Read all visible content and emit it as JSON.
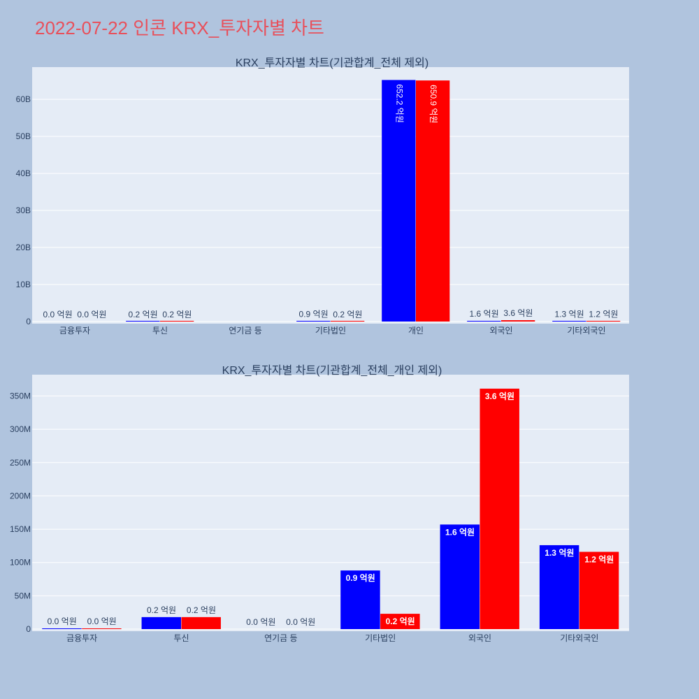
{
  "page": {
    "title": "2022-07-22 인콘 KRX_투자자별 차트"
  },
  "chart_data": [
    {
      "type": "bar",
      "title": "KRX_투자자별 차트(기관합계_전체 제외)",
      "categories": [
        "금융투자",
        "투신",
        "연기금 등",
        "기타법인",
        "개인",
        "외국인",
        "기타외국인"
      ],
      "series": [
        {
          "color": "#0000ff",
          "values": [
            0,
            20000000,
            0,
            90000000,
            65220000000,
            160000000,
            130000000
          ],
          "labels": [
            "0.0 억원",
            "0.2 억원",
            "",
            "0.9 억원",
            "652.2 억원",
            "1.6 억원",
            "1.3 억원"
          ]
        },
        {
          "color": "#ff0000",
          "values": [
            0,
            20000000,
            0,
            20000000,
            65090000000,
            360000000,
            120000000
          ],
          "labels": [
            "0.0 억원",
            "0.2 억원",
            "",
            "0.2 억원",
            "650.9 억원",
            "3.6 억원",
            "1.2 억원"
          ]
        }
      ],
      "yticks": [
        0,
        10000000000,
        20000000000,
        30000000000,
        40000000000,
        50000000000,
        60000000000
      ],
      "ytick_labels": [
        "0",
        "10B",
        "20B",
        "30B",
        "40B",
        "50B",
        "60B"
      ],
      "ylim": [
        0,
        68700000000
      ]
    },
    {
      "type": "bar",
      "title": "KRX_투자자별 차트(기관합계_전체_개인 제외)",
      "categories": [
        "금융투자",
        "투신",
        "연기금 등",
        "기타법인",
        "외국인",
        "기타외국인"
      ],
      "series": [
        {
          "color": "#0000ff",
          "values": [
            1000000,
            18000000,
            0,
            88000000,
            157000000,
            126000000
          ],
          "labels": [
            "0.0 억원",
            "0.2 억원",
            "0.0 억원",
            "0.9 억원",
            "1.6 억원",
            "1.3 억원"
          ]
        },
        {
          "color": "#ff0000",
          "values": [
            1000000,
            18000000,
            0,
            23000000,
            361000000,
            116000000
          ],
          "labels": [
            "0.0 억원",
            "0.2 억원",
            "0.0 억원",
            "0.2 억원",
            "3.6 억원",
            "1.2 억원"
          ]
        }
      ],
      "yticks": [
        0,
        50000000,
        100000000,
        150000000,
        200000000,
        250000000,
        300000000,
        350000000
      ],
      "ytick_labels": [
        "0",
        "50M",
        "100M",
        "150M",
        "200M",
        "250M",
        "300M",
        "350M"
      ],
      "ylim": [
        0,
        382000000
      ]
    }
  ]
}
